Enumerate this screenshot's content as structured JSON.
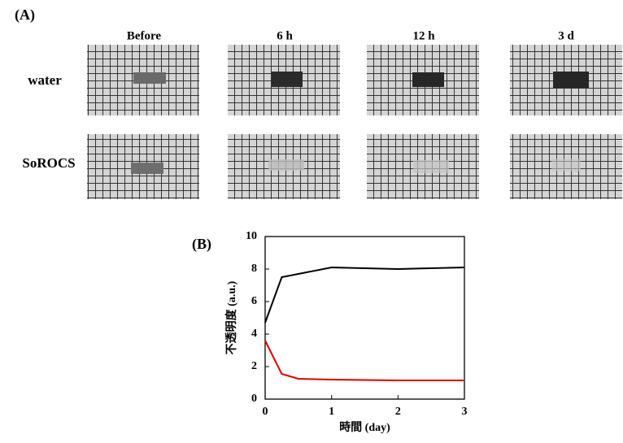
{
  "panel_a": {
    "label": "(A)",
    "columns": [
      "Before",
      "6 h",
      "12 h",
      "3 d"
    ],
    "rows": [
      "water",
      "SoROCS"
    ]
  },
  "chart_data": {
    "type": "line",
    "panel_label": "(B)",
    "xlabel": "時間 (day)",
    "ylabel": "不透明度 (a.u.)",
    "x": [
      0,
      0.25,
      0.5,
      1,
      2,
      3
    ],
    "series": [
      {
        "color": "#000000",
        "values": [
          4.7,
          7.5,
          7.7,
          8.1,
          8.0,
          8.1
        ]
      },
      {
        "color": "#e00000",
        "values": [
          3.6,
          1.55,
          1.25,
          1.2,
          1.15,
          1.15
        ]
      }
    ],
    "xlim": [
      0,
      3
    ],
    "xticks": [
      0,
      1,
      2,
      3
    ],
    "ylim": [
      0,
      10
    ],
    "yticks": [
      0,
      2,
      4,
      6,
      8,
      10
    ]
  }
}
